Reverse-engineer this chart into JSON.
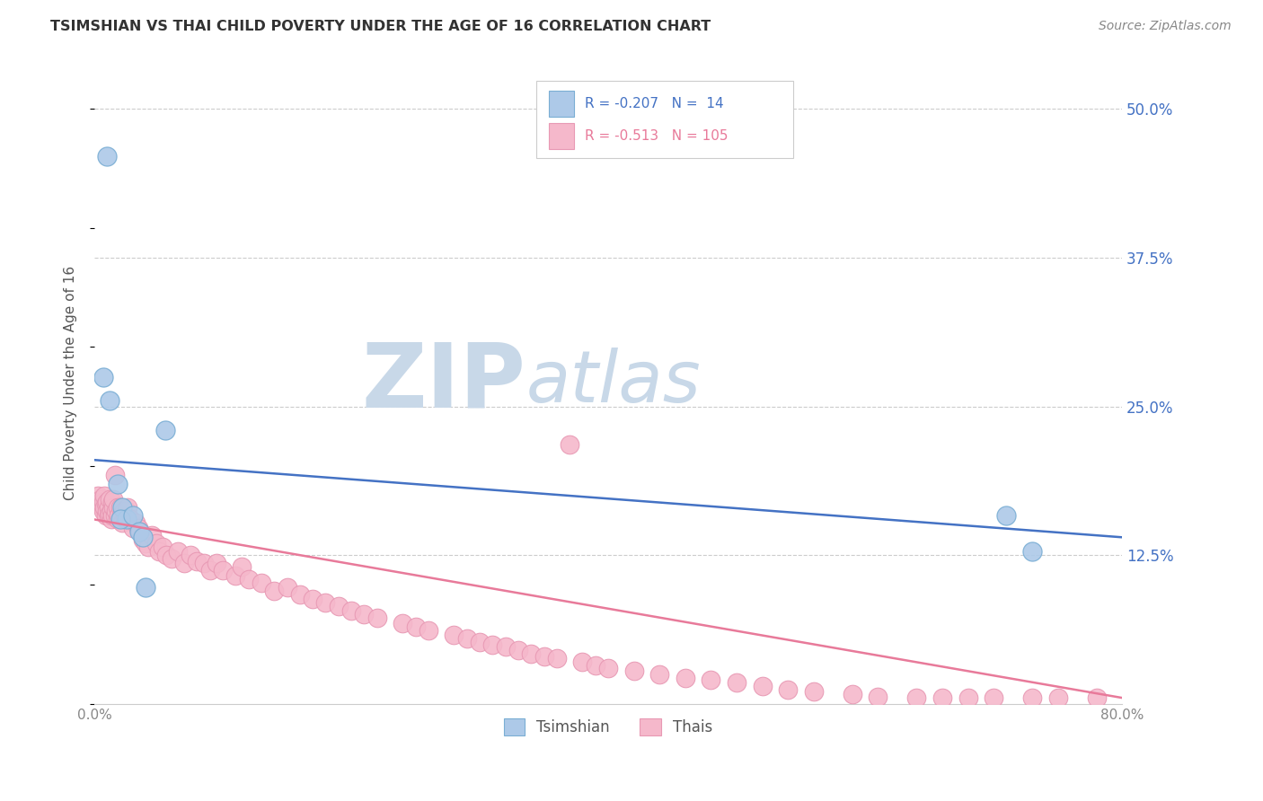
{
  "title": "TSIMSHIAN VS THAI CHILD POVERTY UNDER THE AGE OF 16 CORRELATION CHART",
  "source": "Source: ZipAtlas.com",
  "ylabel": "Child Poverty Under the Age of 16",
  "xlim": [
    0.0,
    0.8
  ],
  "ylim": [
    0.0,
    0.54
  ],
  "xticks": [
    0.0,
    0.1,
    0.2,
    0.3,
    0.4,
    0.5,
    0.6,
    0.7,
    0.8
  ],
  "ytick_right": [
    0.125,
    0.25,
    0.375,
    0.5
  ],
  "ytick_right_labels": [
    "12.5%",
    "25.0%",
    "37.5%",
    "50.0%"
  ],
  "grid_color": "#cccccc",
  "background_color": "#ffffff",
  "tsimshian_color": "#adc9e8",
  "thai_color": "#f5b8cb",
  "tsimshian_edge_color": "#7aaed4",
  "thai_edge_color": "#e899b4",
  "tsimshian_line_color": "#4472c4",
  "thai_line_color": "#e87a9a",
  "legend_tsimshian_R": "-0.207",
  "legend_tsimshian_N": "14",
  "legend_thai_R": "-0.513",
  "legend_thai_N": "105",
  "legend_label_tsimshian": "Tsimshian",
  "legend_label_thai": "Thais",
  "watermark_zip": "ZIP",
  "watermark_atlas": "atlas",
  "watermark_color_zip": "#c8d8e8",
  "watermark_color_atlas": "#c8d8e8",
  "tsimshian_x": [
    0.01,
    0.007,
    0.012,
    0.018,
    0.022,
    0.025,
    0.02,
    0.03,
    0.035,
    0.04,
    0.038,
    0.055,
    0.71,
    0.73
  ],
  "tsimshian_y": [
    0.46,
    0.275,
    0.255,
    0.185,
    0.165,
    0.155,
    0.155,
    0.158,
    0.145,
    0.098,
    0.14,
    0.23,
    0.158,
    0.128
  ],
  "thai_x": [
    0.003,
    0.004,
    0.005,
    0.005,
    0.006,
    0.007,
    0.007,
    0.008,
    0.008,
    0.009,
    0.009,
    0.01,
    0.01,
    0.011,
    0.011,
    0.012,
    0.012,
    0.013,
    0.013,
    0.014,
    0.014,
    0.015,
    0.015,
    0.016,
    0.016,
    0.017,
    0.018,
    0.018,
    0.019,
    0.02,
    0.021,
    0.022,
    0.023,
    0.024,
    0.025,
    0.026,
    0.027,
    0.028,
    0.03,
    0.032,
    0.034,
    0.036,
    0.038,
    0.04,
    0.042,
    0.045,
    0.048,
    0.05,
    0.053,
    0.056,
    0.06,
    0.065,
    0.07,
    0.075,
    0.08,
    0.085,
    0.09,
    0.095,
    0.1,
    0.11,
    0.115,
    0.12,
    0.13,
    0.14,
    0.15,
    0.16,
    0.17,
    0.18,
    0.19,
    0.2,
    0.21,
    0.22,
    0.24,
    0.25,
    0.26,
    0.28,
    0.29,
    0.3,
    0.31,
    0.32,
    0.33,
    0.34,
    0.35,
    0.36,
    0.37,
    0.38,
    0.39,
    0.4,
    0.42,
    0.44,
    0.46,
    0.48,
    0.5,
    0.52,
    0.54,
    0.56,
    0.59,
    0.61,
    0.64,
    0.66,
    0.68,
    0.7,
    0.73,
    0.75,
    0.78
  ],
  "thai_y": [
    0.175,
    0.168,
    0.17,
    0.172,
    0.165,
    0.162,
    0.17,
    0.175,
    0.165,
    0.158,
    0.168,
    0.162,
    0.17,
    0.165,
    0.158,
    0.16,
    0.172,
    0.155,
    0.162,
    0.17,
    0.158,
    0.165,
    0.172,
    0.192,
    0.158,
    0.162,
    0.155,
    0.165,
    0.158,
    0.165,
    0.158,
    0.152,
    0.162,
    0.155,
    0.162,
    0.165,
    0.155,
    0.155,
    0.148,
    0.152,
    0.148,
    0.145,
    0.138,
    0.135,
    0.132,
    0.142,
    0.135,
    0.128,
    0.132,
    0.125,
    0.122,
    0.128,
    0.118,
    0.125,
    0.12,
    0.118,
    0.112,
    0.118,
    0.112,
    0.108,
    0.115,
    0.105,
    0.102,
    0.095,
    0.098,
    0.092,
    0.088,
    0.085,
    0.082,
    0.078,
    0.075,
    0.072,
    0.068,
    0.065,
    0.062,
    0.058,
    0.055,
    0.052,
    0.05,
    0.048,
    0.045,
    0.042,
    0.04,
    0.038,
    0.218,
    0.035,
    0.032,
    0.03,
    0.028,
    0.025,
    0.022,
    0.02,
    0.018,
    0.015,
    0.012,
    0.01,
    0.008,
    0.006,
    0.005,
    0.005,
    0.005,
    0.005,
    0.005,
    0.005,
    0.005
  ],
  "tsimshian_regression_x0": 0.0,
  "tsimshian_regression_y0": 0.205,
  "tsimshian_regression_x1": 0.8,
  "tsimshian_regression_y1": 0.14,
  "thai_regression_x0": 0.0,
  "thai_regression_y0": 0.155,
  "thai_regression_x1": 0.8,
  "thai_regression_y1": 0.005
}
